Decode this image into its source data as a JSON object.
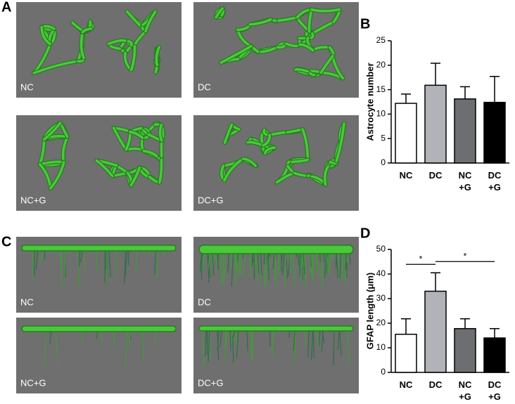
{
  "images": {
    "A": {
      "panel_label": "A",
      "labels": [
        "NC",
        "DC",
        "NC+G",
        "DC+G"
      ]
    },
    "C": {
      "panel_label": "C",
      "labels": [
        "NC",
        "DC",
        "NC+G",
        "DC+G"
      ]
    }
  },
  "chart_data": [
    {
      "type": "bar",
      "panel_label": "B",
      "ylabel": "Astrocyte number",
      "categories": [
        "NC",
        "DC",
        "NC\n+G",
        "DC\n+G"
      ],
      "values": [
        12.2,
        15.9,
        13.1,
        12.4
      ],
      "errors": [
        1.9,
        4.5,
        2.5,
        5.3
      ],
      "colors": [
        "#ffffff",
        "#b1b3b8",
        "#6d6e71",
        "#000000"
      ],
      "ylim": [
        0,
        25
      ],
      "yticks": [
        0,
        5,
        10,
        15,
        20,
        25
      ]
    },
    {
      "type": "bar",
      "panel_label": "D",
      "ylabel": "GFAP length (μm)",
      "categories": [
        "NC",
        "DC",
        "NC\n+G",
        "DC\n+G"
      ],
      "values": [
        15.5,
        33,
        17.8,
        14
      ],
      "errors": [
        6.3,
        7.5,
        4,
        3.8
      ],
      "colors": [
        "#ffffff",
        "#b1b3b8",
        "#6d6e71",
        "#000000"
      ],
      "ylim": [
        0,
        50
      ],
      "yticks": [
        0,
        10,
        20,
        30,
        40,
        50
      ],
      "significance": [
        {
          "pair": [
            0,
            1
          ],
          "label": "*"
        },
        {
          "pair": [
            1,
            3
          ],
          "label": "*"
        }
      ]
    }
  ]
}
